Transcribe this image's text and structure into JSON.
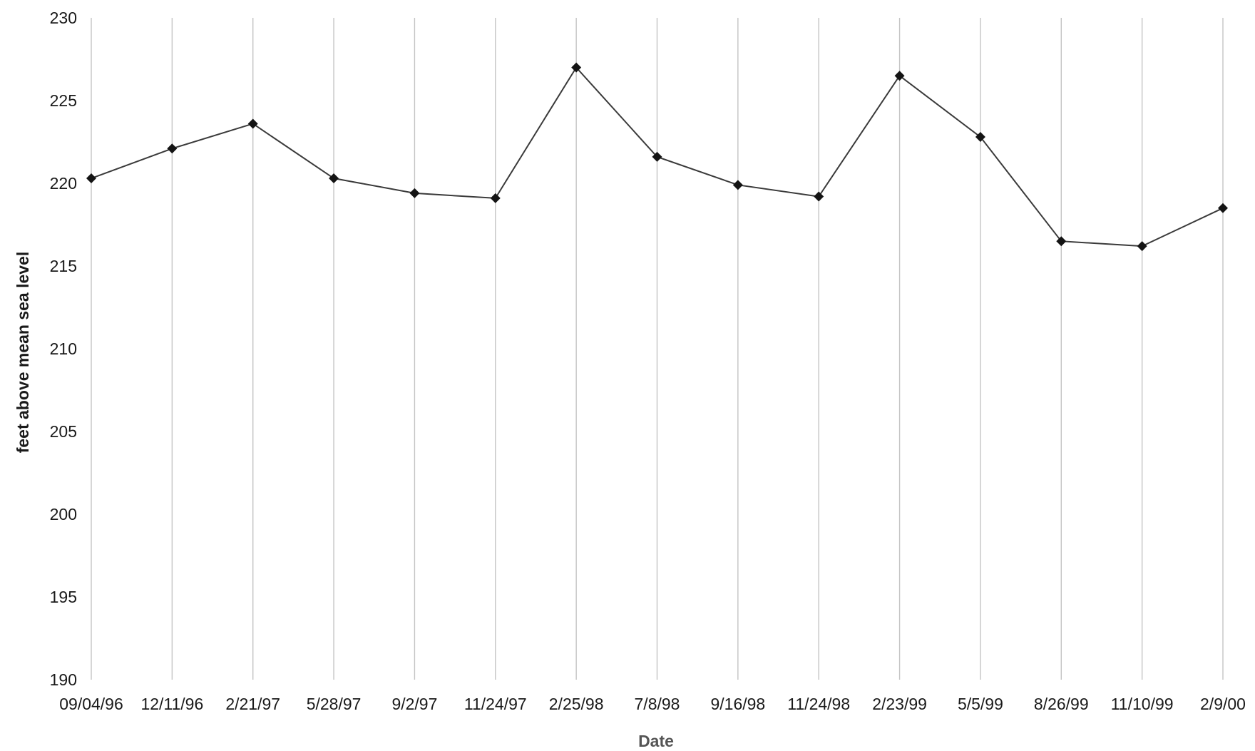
{
  "chart_data": {
    "type": "line",
    "xlabel": "Date",
    "ylabel": "feet above mean sea level",
    "ylim": [
      190,
      230
    ],
    "yticks": [
      190,
      195,
      200,
      205,
      210,
      215,
      220,
      225,
      230
    ],
    "grid": "vertical",
    "categories": [
      "09/04/96",
      "12/11/96",
      "2/21/97",
      "5/28/97",
      "9/2/97",
      "11/24/97",
      "2/25/98",
      "7/8/98",
      "9/16/98",
      "11/24/98",
      "2/23/99",
      "5/5/99",
      "8/26/99",
      "11/10/99",
      "2/9/00"
    ],
    "series": [
      {
        "values": [
          220.3,
          222.1,
          223.6,
          220.3,
          219.4,
          219.1,
          227.0,
          221.6,
          219.9,
          219.2,
          226.5,
          222.8,
          216.5,
          216.2,
          218.5
        ],
        "color": "#3a3a3a",
        "marker": "diamond"
      }
    ]
  }
}
